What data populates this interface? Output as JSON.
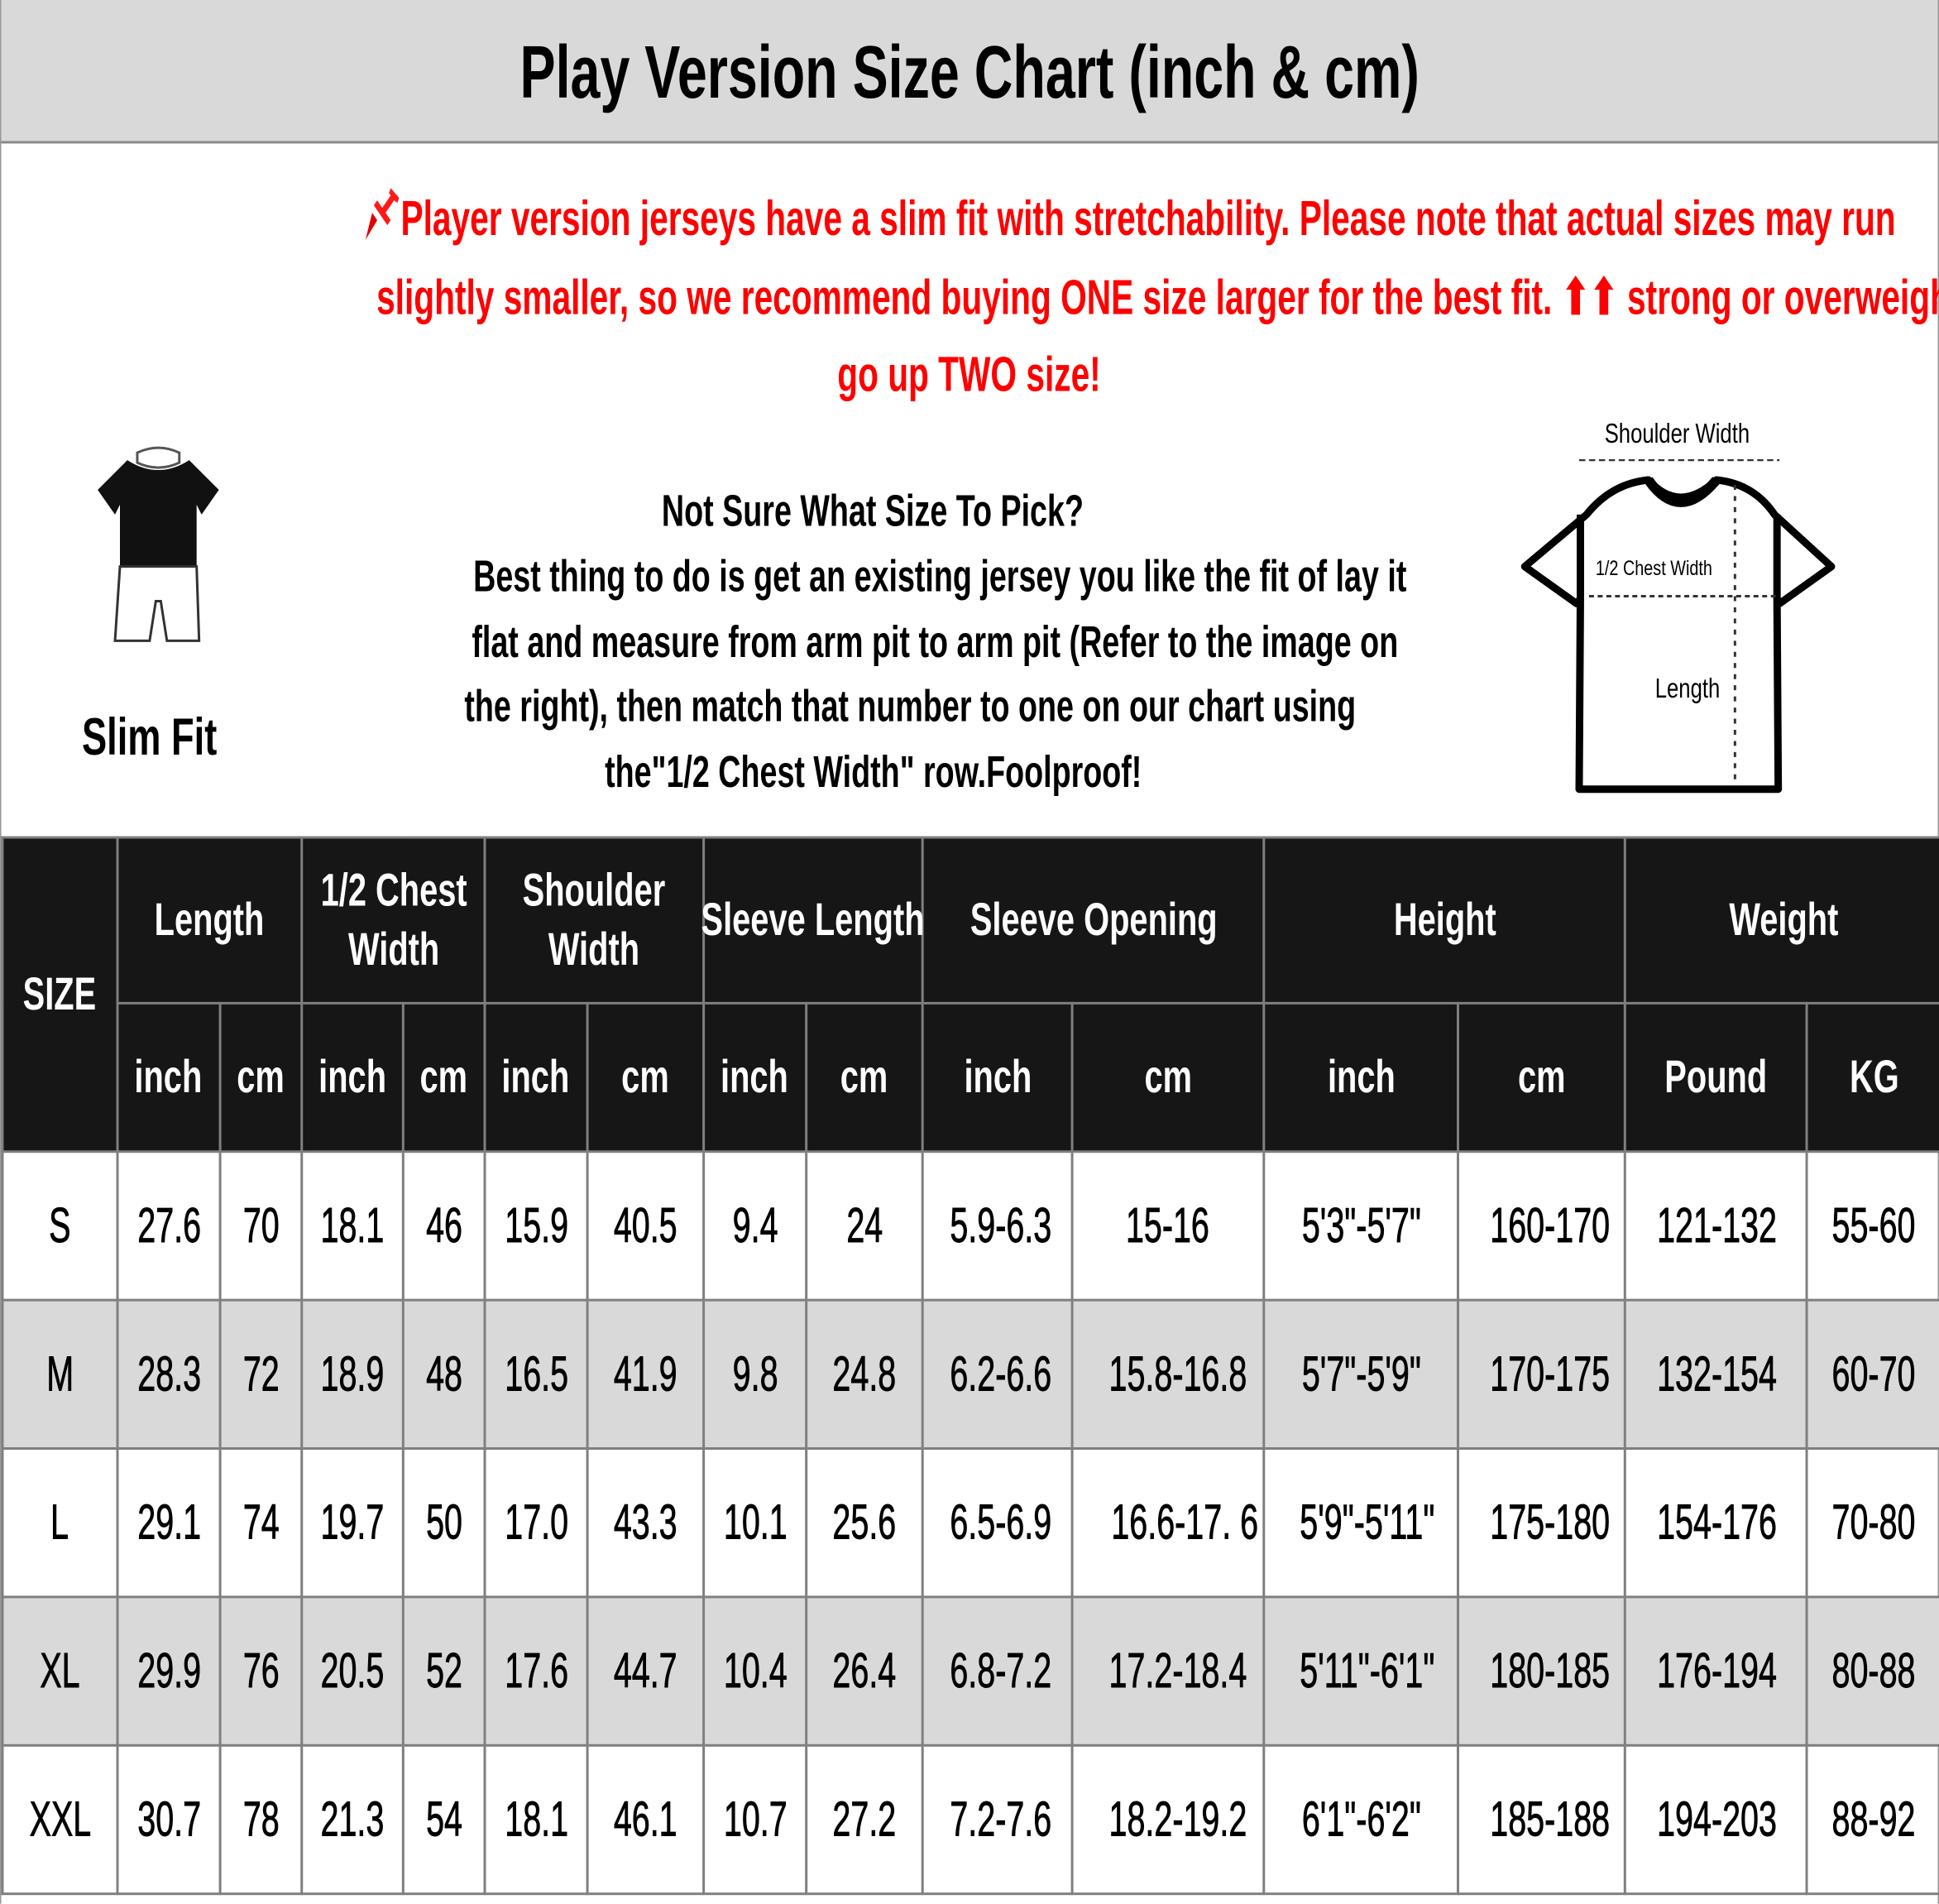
{
  "title": "Play Version Size Chart (inch & cm)",
  "notice": {
    "icon": "pushpin-icon",
    "color": "#ff0000",
    "lines": [
      "Player version jerseys have a slim fit with stretchability. Please note that actual sizes may run",
      "slightly smaller, so we recommend buying ONE size larger for the best fit. ⬆⬆ strong or overweight,",
      "go up TWO size!"
    ]
  },
  "fit": {
    "label": "Slim Fit",
    "image": "mannequin-slim-fit"
  },
  "advice": {
    "lines": [
      "Not Sure What Size To Pick?",
      "Best thing to do is get an existing jersey you like the fit of lay it",
      "flat and measure from arm pit to arm pit (Refer to the image on",
      "the right), then match that number to one on our chart using",
      "the\"1/2 Chest Width\" row.Foolproof!"
    ]
  },
  "diagram": {
    "shoulder_width": "Shoulder Width",
    "chest_width": "1/2 Chest Width",
    "length": "Length"
  },
  "table": {
    "size_header": "SIZE",
    "groups": [
      {
        "label": "Length",
        "units": [
          "inch",
          "cm"
        ]
      },
      {
        "label": "1/2 Chest Width",
        "units": [
          "inch",
          "cm"
        ]
      },
      {
        "label": "Shoulder Width",
        "units": [
          "inch",
          "cm"
        ]
      },
      {
        "label": "Sleeve Length",
        "units": [
          "inch",
          "cm"
        ]
      },
      {
        "label": "Sleeve Opening",
        "units": [
          "inch",
          "cm"
        ]
      },
      {
        "label": "Height",
        "units": [
          "inch",
          "cm"
        ]
      },
      {
        "label": "Weight",
        "units": [
          "Pound",
          "KG"
        ]
      }
    ],
    "rows": [
      [
        "S",
        "27.6",
        "70",
        "18.1",
        "46",
        "15.9",
        "40.5",
        "9.4",
        "24",
        "5.9-6.3",
        "15-16",
        "5'3\"-5'7\"",
        "160-170",
        "121-132",
        "55-60"
      ],
      [
        "M",
        "28.3",
        "72",
        "18.9",
        "48",
        "16.5",
        "41.9",
        "9.8",
        "24.8",
        "6.2-6.6",
        "15.8-16.8",
        "5'7\"-5'9\"",
        "170-175",
        "132-154",
        "60-70"
      ],
      [
        "L",
        "29.1",
        "74",
        "19.7",
        "50",
        "17.0",
        "43.3",
        "10.1",
        "25.6",
        "6.5-6.9",
        "16.6-17. 6",
        "5'9\"-5'11\"",
        "175-180",
        "154-176",
        "70-80"
      ],
      [
        "XL",
        "29.9",
        "76",
        "20.5",
        "52",
        "17.6",
        "44.7",
        "10.4",
        "26.4",
        "6.8-7.2",
        "17.2-18.4",
        "5'11\"-6'1\"",
        "180-185",
        "176-194",
        "80-88"
      ],
      [
        "XXL",
        "30.7",
        "78",
        "21.3",
        "54",
        "18.1",
        "46.1",
        "10.7",
        "27.2",
        "7.2-7.6",
        "18.2-19.2",
        "6'1\"-6'2\"",
        "185-188",
        "194-203",
        "88-92"
      ]
    ]
  },
  "colors": {
    "header_bg": "#161616",
    "title_bg": "#d9d9d9",
    "alt_row_bg": "#d9d9d9",
    "notice_text": "#ff0000",
    "grid": "#7f7f7f"
  }
}
